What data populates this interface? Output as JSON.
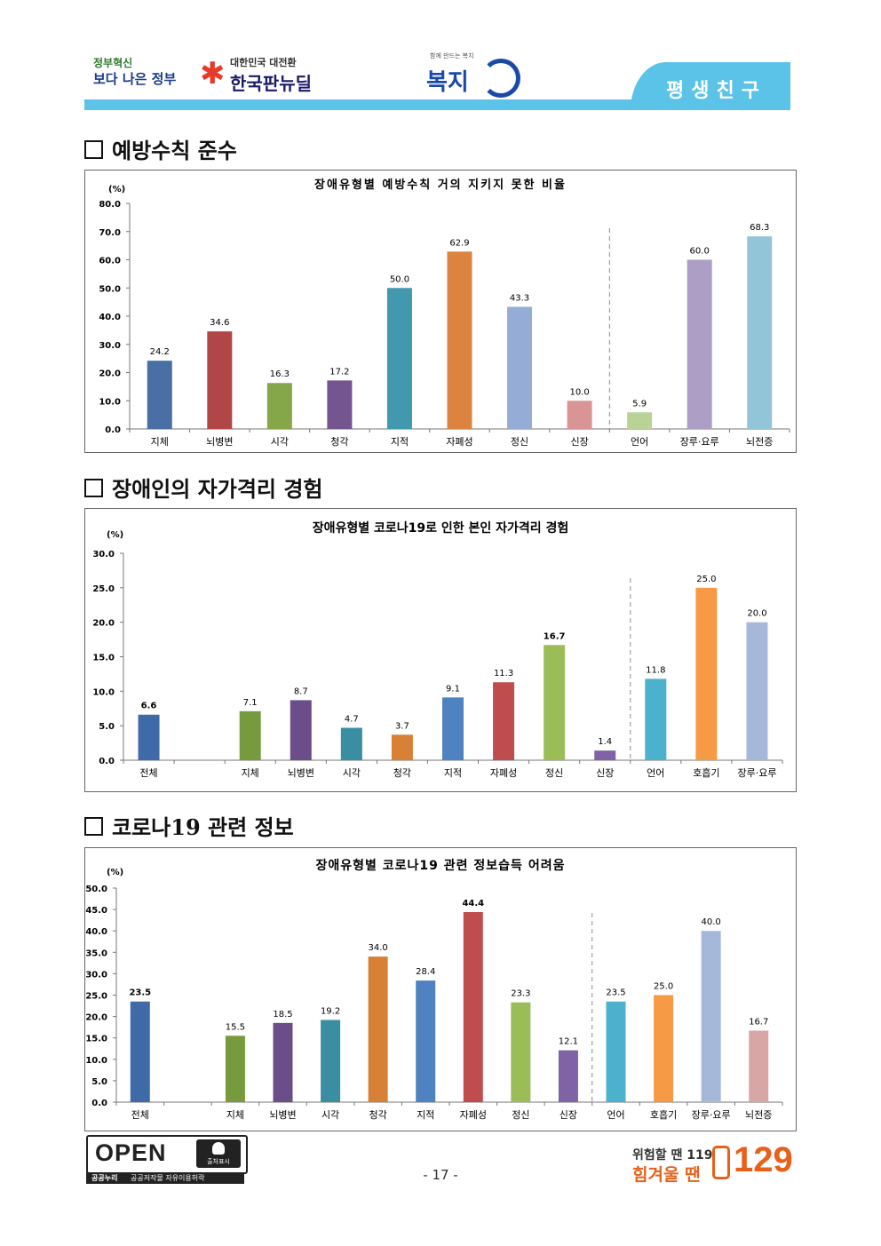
{
  "header": {
    "logo1_small": "정부혁신",
    "logo1_big": "보다 나은 정부",
    "logo2_small": "대한민국 대전환",
    "logo2_big": "한국판뉴딜",
    "logo3_small": "함께 만드는 복지",
    "logo3_big": "복지",
    "tab_label": "평생친구"
  },
  "sections": [
    {
      "title": "예방수칙 준수"
    },
    {
      "title": "장애인의 자가격리 경험"
    },
    {
      "title": "코로나19 관련 정보"
    }
  ],
  "chart_data": [
    {
      "type": "bar",
      "title": "장애유형별 예방수칙 거의 지키지 못한 비율",
      "ylabel": "(%)",
      "ylim": [
        0,
        80
      ],
      "yticks": [
        "0.0",
        "10.0",
        "20.0",
        "30.0",
        "40.0",
        "50.0",
        "60.0",
        "70.0",
        "80.0"
      ],
      "categories": [
        "지체",
        "뇌병변",
        "시각",
        "청각",
        "지적",
        "자폐성",
        "정신",
        "신장",
        "언어",
        "장루·요루",
        "뇌전증"
      ],
      "values": [
        24.2,
        34.6,
        16.3,
        17.2,
        50.0,
        62.9,
        43.3,
        10.0,
        5.9,
        60.0,
        68.3
      ],
      "labels": [
        "24.2",
        "34.6",
        "16.3",
        "17.2",
        "50.0",
        "62.9",
        "43.3",
        "10.0",
        "5.9",
        "60.0",
        "68.3"
      ],
      "colors": [
        "#4a6fa5",
        "#b04646",
        "#86a64a",
        "#74558f",
        "#4298ae",
        "#dc8340",
        "#95acd6",
        "#d99595",
        "#b9d396",
        "#ad9ec6",
        "#93c5d8"
      ],
      "divider_after": 7,
      "grid": false
    },
    {
      "type": "bar",
      "title": "장애유형별 코로나19로 인한 본인 자가격리 경험",
      "ylabel": "(%)",
      "ylim": [
        0,
        30
      ],
      "yticks": [
        "0.0",
        "5.0",
        "10.0",
        "15.0",
        "20.0",
        "25.0",
        "30.0"
      ],
      "categories": [
        "전체",
        "",
        "지체",
        "뇌병변",
        "시각",
        "청각",
        "지적",
        "자폐성",
        "정신",
        "신장",
        "언어",
        "호흡기",
        "장루·요루"
      ],
      "values": [
        6.6,
        null,
        7.1,
        8.7,
        4.7,
        3.7,
        9.1,
        11.3,
        16.7,
        1.4,
        11.8,
        25.0,
        20.0
      ],
      "labels": [
        "6.6",
        "",
        "7.1",
        "8.7",
        "4.7",
        "3.7",
        "9.1",
        "11.3",
        "16.7",
        "1.4",
        "11.8",
        "25.0",
        "20.0"
      ],
      "bold_labels": [
        0,
        8
      ],
      "colors": [
        "#3f6aa8",
        "#ffffff",
        "#789a3e",
        "#6b4d8a",
        "#3a8ea2",
        "#d78036",
        "#4f82c0",
        "#c04d4d",
        "#9bbd58",
        "#7f63a6",
        "#4bb1cd",
        "#f79a45",
        "#a6b8da"
      ],
      "divider_after": 9,
      "grid": false
    },
    {
      "type": "bar",
      "title": "장애유형별 코로나19 관련 정보습득 어려움",
      "ylabel": "(%)",
      "ylim": [
        0,
        50
      ],
      "yticks": [
        "0.0",
        "5.0",
        "10.0",
        "15.0",
        "20.0",
        "25.0",
        "30.0",
        "35.0",
        "40.0",
        "45.0",
        "50.0"
      ],
      "categories": [
        "전체",
        "",
        "지체",
        "뇌병변",
        "시각",
        "청각",
        "지적",
        "자폐성",
        "정신",
        "신장",
        "언어",
        "호흡기",
        "장루·요루",
        "뇌전증"
      ],
      "values": [
        23.5,
        null,
        15.5,
        18.5,
        19.2,
        34.0,
        28.4,
        44.4,
        23.3,
        12.1,
        23.5,
        25.0,
        40.0,
        16.7
      ],
      "labels": [
        "23.5",
        "",
        "15.5",
        "18.5",
        "19.2",
        "34.0",
        "28.4",
        "44.4",
        "23.3",
        "12.1",
        "23.5",
        "25.0",
        "40.0",
        "16.7"
      ],
      "bold_labels": [
        0,
        7
      ],
      "colors": [
        "#3f6aa8",
        "#ffffff",
        "#789a3e",
        "#6b4d8a",
        "#3a8ea2",
        "#d78036",
        "#4f82c0",
        "#c04d4d",
        "#9bbd58",
        "#7f63a6",
        "#4bb1cd",
        "#f79a45",
        "#a6b8da",
        "#d9a6a6"
      ],
      "divider_after": 9,
      "grid": false
    }
  ],
  "footer": {
    "open_text": "OPEN",
    "open_badge": "출처표시",
    "open_sub_a": "공공누리",
    "open_sub_b": "공공저작물 자유이용허락",
    "page_number": "- 17 -",
    "hotline_line1": "위험할 땐 119",
    "hotline_line2": "힘겨울 땐",
    "hotline_number": "129"
  }
}
